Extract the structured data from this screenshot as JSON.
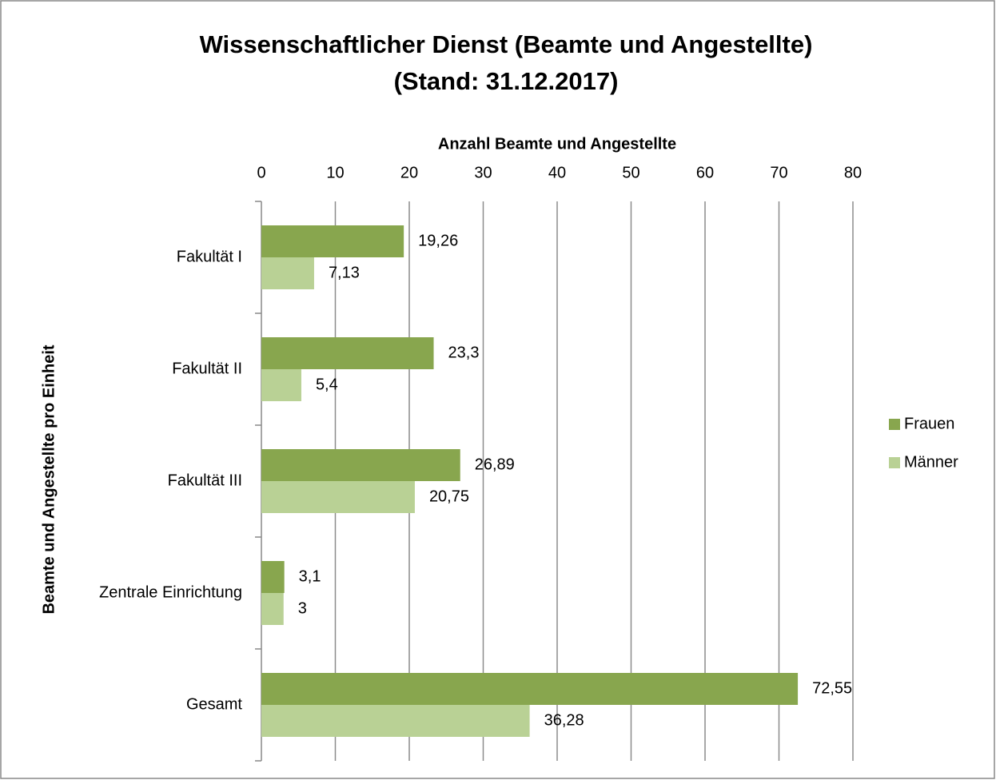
{
  "chart_data": {
    "type": "hbar",
    "title": "Wissenschaftlicher Dienst (Beamte und Angestellte)",
    "subtitle": "(Stand: 31.12.2017)",
    "x_label": "Anzahl Beamte und Angestellte",
    "y_label": "Beamte und Angestellte pro Einheit",
    "categories": [
      "Fakultät I",
      "Fakultät II",
      "Fakultät III",
      "Zentrale Einrichtung",
      "Gesamt"
    ],
    "series": [
      {
        "name": "Frauen",
        "color": "#88a64e",
        "values": [
          19.26,
          23.3,
          26.89,
          3.1,
          72.55
        ],
        "value_labels": [
          "19,26",
          "23,3",
          "26,89",
          "3,1",
          "72,55"
        ]
      },
      {
        "name": "Männer",
        "color": "#b9d195",
        "values": [
          7.13,
          5.4,
          20.75,
          3,
          36.28
        ],
        "value_labels": [
          "7,13",
          "5,4",
          "20,75",
          "3",
          "36,28"
        ]
      }
    ],
    "xlim": [
      0,
      80
    ],
    "xticks": [
      0,
      10,
      20,
      30,
      40,
      50,
      60,
      70,
      80
    ],
    "grid": true,
    "legend": "right"
  }
}
